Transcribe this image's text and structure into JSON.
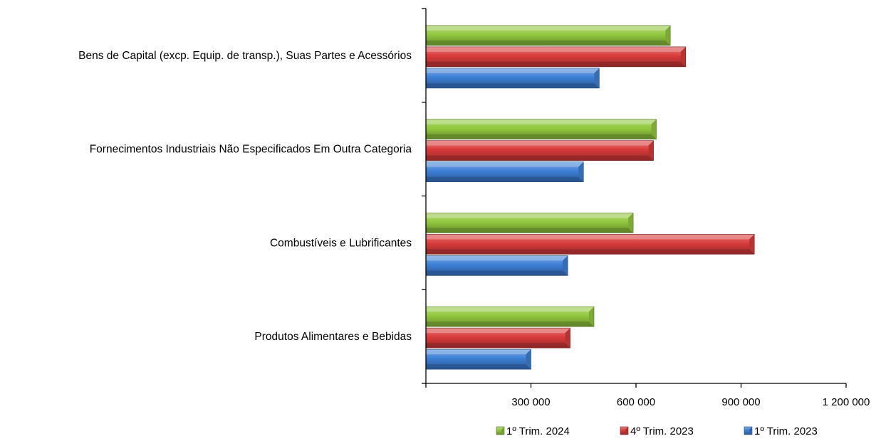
{
  "chart_data": {
    "type": "bar",
    "orientation": "horizontal",
    "categories": [
      "Bens de Capital (excp. Equip. de transp.), Suas Partes e Acessórios",
      "Fornecimentos Industriais Não Especificados Em Outra Categoria",
      "Combustíveis e Lubrificantes",
      "Produtos Alimentares e Bebidas"
    ],
    "series": [
      {
        "name": "1º Trim. 2024",
        "color": "#92c83e",
        "values": [
          698000,
          658000,
          592000,
          480000
        ]
      },
      {
        "name": "4º Trim. 2023",
        "color": "#d93b3b",
        "values": [
          742000,
          650000,
          938000,
          412000
        ]
      },
      {
        "name": "1º Trim. 2023",
        "color": "#3d7fd6",
        "values": [
          495000,
          450000,
          405000,
          300000
        ]
      }
    ],
    "xlim": [
      0,
      1200000
    ],
    "xticks": [
      0,
      300000,
      600000,
      900000,
      1200000
    ],
    "xtick_labels": [
      "",
      "300 000",
      "600 000",
      "900 000",
      "1 200 000"
    ],
    "legend_order": [
      0,
      1,
      2
    ],
    "legend_position": "bottom-right",
    "grid": false
  }
}
